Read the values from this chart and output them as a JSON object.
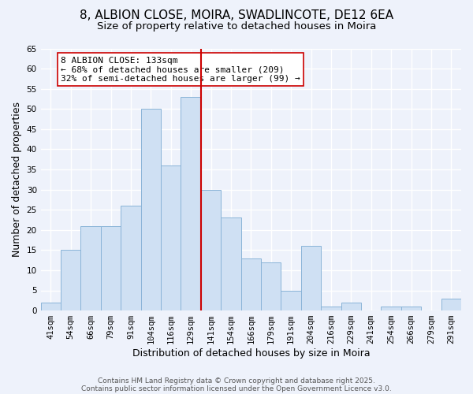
{
  "title": "8, ALBION CLOSE, MOIRA, SWADLINCOTE, DE12 6EA",
  "subtitle": "Size of property relative to detached houses in Moira",
  "xlabel": "Distribution of detached houses by size in Moira",
  "ylabel": "Number of detached properties",
  "bar_labels": [
    "41sqm",
    "54sqm",
    "66sqm",
    "79sqm",
    "91sqm",
    "104sqm",
    "116sqm",
    "129sqm",
    "141sqm",
    "154sqm",
    "166sqm",
    "179sqm",
    "191sqm",
    "204sqm",
    "216sqm",
    "229sqm",
    "241sqm",
    "254sqm",
    "266sqm",
    "279sqm",
    "291sqm"
  ],
  "bar_values": [
    2,
    15,
    21,
    21,
    26,
    50,
    36,
    53,
    30,
    23,
    13,
    12,
    5,
    16,
    1,
    2,
    0,
    1,
    1,
    0,
    3
  ],
  "bar_color": "#cfe0f3",
  "bar_edge_color": "#8ab4d8",
  "vline_x": 7.5,
  "vline_color": "#cc0000",
  "annotation_text": "8 ALBION CLOSE: 133sqm\n← 68% of detached houses are smaller (209)\n32% of semi-detached houses are larger (99) →",
  "annotation_box_color": "#ffffff",
  "annotation_box_edge": "#cc0000",
  "ylim": [
    0,
    65
  ],
  "yticks": [
    0,
    5,
    10,
    15,
    20,
    25,
    30,
    35,
    40,
    45,
    50,
    55,
    60,
    65
  ],
  "footnote1": "Contains HM Land Registry data © Crown copyright and database right 2025.",
  "footnote2": "Contains public sector information licensed under the Open Government Licence v3.0.",
  "bg_color": "#eef2fb",
  "grid_color": "#ffffff",
  "title_fontsize": 11,
  "subtitle_fontsize": 9.5,
  "axis_label_fontsize": 9,
  "tick_fontsize": 7.5,
  "annotation_fontsize": 8,
  "footnote_fontsize": 6.5
}
